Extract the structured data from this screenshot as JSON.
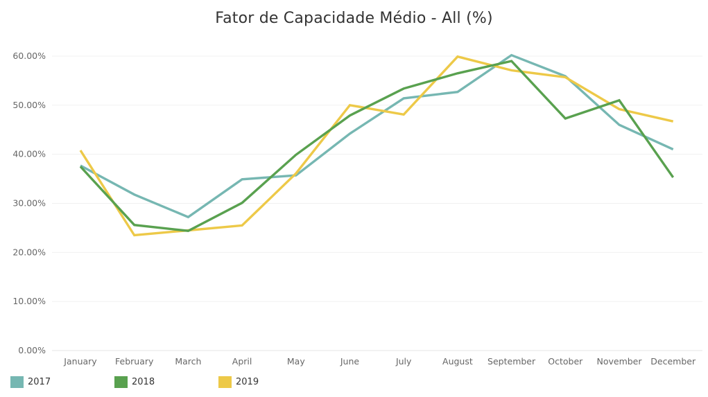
{
  "chart_data": {
    "type": "line",
    "title": "Fator de Capacidade Médio - All (%)",
    "categories": [
      "January",
      "February",
      "March",
      "April",
      "May",
      "June",
      "July",
      "August",
      "September",
      "October",
      "November",
      "December"
    ],
    "y_ticks": [
      "0.00%",
      "10.00%",
      "20.00%",
      "30.00%",
      "40.00%",
      "50.00%",
      "60.00%"
    ],
    "ylim": [
      0,
      63
    ],
    "grid": true,
    "legend_position": "bottom-left",
    "series": [
      {
        "name": "2017",
        "color": "#76b7b2",
        "values": [
          37.7,
          31.8,
          27.2,
          34.9,
          35.7,
          44.2,
          51.4,
          52.7,
          60.2,
          55.9,
          46.0,
          41.0
        ]
      },
      {
        "name": "2018",
        "color": "#59a14f",
        "values": [
          37.5,
          25.6,
          24.4,
          30.1,
          39.9,
          47.9,
          53.4,
          56.5,
          59.0,
          47.3,
          51.0,
          35.3
        ]
      },
      {
        "name": "2019",
        "color": "#edc948",
        "values": [
          40.8,
          23.5,
          24.5,
          25.5,
          36.1,
          50.0,
          48.1,
          59.9,
          57.1,
          55.7,
          49.2,
          46.7
        ]
      }
    ]
  }
}
